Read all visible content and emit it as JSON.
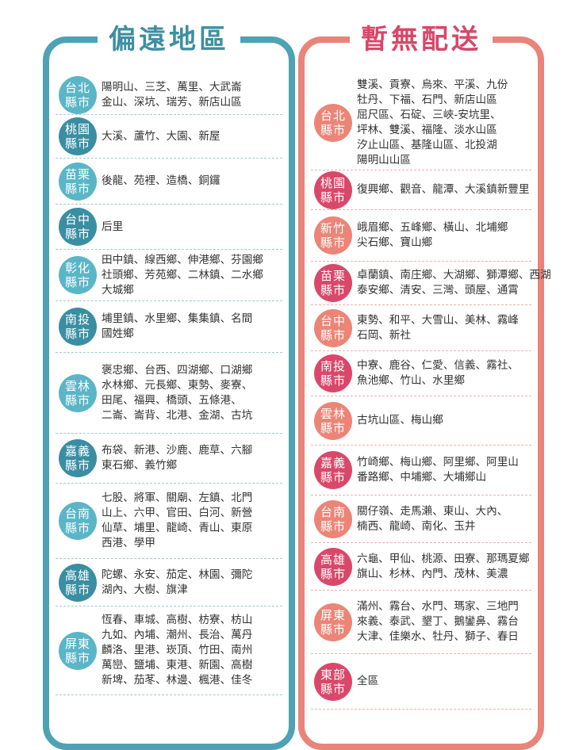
{
  "colors": {
    "teal_border": "#4ea2b4",
    "teal_light": "#5ab6c6",
    "teal_dark": "#3a8ea2",
    "salmon_border": "#e8847a",
    "salmon": "#ec8577",
    "crimson": "#d9486a"
  },
  "left": {
    "title": "偏遠地區",
    "rows": [
      {
        "region": [
          "台北",
          "縣市"
        ],
        "areas": [
          "陽明山、三芝、萬里、大武崙",
          "金山、深坑、瑞芳、新店山區"
        ]
      },
      {
        "region": [
          "桃園",
          "縣市"
        ],
        "areas": [
          "大溪、蘆竹、大園、新屋"
        ]
      },
      {
        "region": [
          "苗栗",
          "縣市"
        ],
        "areas": [
          "後龍、苑裡、造橋、銅鑼"
        ]
      },
      {
        "region": [
          "台中",
          "縣市"
        ],
        "areas": [
          "后里"
        ]
      },
      {
        "region": [
          "彰化",
          "縣市"
        ],
        "areas": [
          "田中鎮、線西鄉、伸港鄉、芬園鄉",
          "社頭鄉、芳苑鄉、二林鎮、二水鄉",
          "大城鄉"
        ]
      },
      {
        "region": [
          "南投",
          "縣市"
        ],
        "areas": [
          "埔里鎮、水里鄉、集集鎮、名間",
          "國姓鄉"
        ]
      },
      {
        "region": [
          "雲林",
          "縣市"
        ],
        "areas": [
          "褒忠鄉、台西、四湖鄉、口湖鄉",
          "水林鄉、元長鄉、東勢、麥寮、",
          "田尾、福興、橋頭、五條港、",
          "二崙、崙背、北港、金湖、古坑"
        ]
      },
      {
        "region": [
          "嘉義",
          "縣市"
        ],
        "areas": [
          "布袋、新港、沙鹿、鹿草、六腳",
          "東石鄉、義竹鄉"
        ]
      },
      {
        "region": [
          "台南",
          "縣市"
        ],
        "areas": [
          "七股、將軍、關廟、左鎮、北門",
          "山上、六甲、官田、白河、新營",
          "仙草、埔里、龍崎、青山、東原",
          "西港、學甲"
        ]
      },
      {
        "region": [
          "高雄",
          "縣市"
        ],
        "areas": [
          "陀螺、永安、茄定、林園、彌陀",
          "湖內、大樹、旗津"
        ]
      },
      {
        "region": [
          "屏東",
          "縣市"
        ],
        "areas": [
          "恆春、車城、高樹、枋寮、枋山",
          "九如、內埔、潮州、長治、萬丹",
          "麟洛、里港、崁頂、竹田、南州",
          "萬巒、鹽埔、東港、新園、高樹",
          "新埤、茄苳、林邊、楓港、佳冬"
        ]
      }
    ]
  },
  "right": {
    "title": "暫無配送",
    "rows": [
      {
        "region": [
          "台北",
          "縣市"
        ],
        "areas": [
          "雙溪、貢寮、烏來、平溪、九份",
          "牡丹、下福、石門、新店山區",
          "屈尺區、石碇、三峽-安坑里、",
          "坪林、雙溪、福隆、淡水山區",
          "汐止山區、基隆山區、北投湖",
          "陽明山山區"
        ]
      },
      {
        "region": [
          "桃園",
          "縣市"
        ],
        "areas": [
          "復興鄉、觀音、龍潭、大溪鎮新豐里"
        ]
      },
      {
        "region": [
          "新竹",
          "縣市"
        ],
        "areas": [
          "峨眉鄉、五峰鄉、橫山、北埔鄉",
          "尖石鄉、寶山鄉"
        ]
      },
      {
        "region": [
          "苗栗",
          "縣市"
        ],
        "areas": [
          "卓蘭鎮、南庄鄉、大湖鄉、獅潭鄉、西湖",
          "泰安鄉、清安、三灣、頭屋、通霄"
        ]
      },
      {
        "region": [
          "台中",
          "縣市"
        ],
        "areas": [
          "東勢、和平、大雪山、美林、霧峰",
          "石岡、新社"
        ]
      },
      {
        "region": [
          "南投",
          "縣市"
        ],
        "areas": [
          "中寮、鹿谷、仁愛、信義、霧社、",
          "魚池鄉、竹山、水里鄉"
        ]
      },
      {
        "region": [
          "雲林",
          "縣市"
        ],
        "areas": [
          "古坑山區、梅山鄉"
        ]
      },
      {
        "region": [
          "嘉義",
          "縣市"
        ],
        "areas": [
          "竹崎鄉、梅山鄉、阿里鄉、阿里山",
          "番路鄉、中埔鄉、大埔鄉山"
        ]
      },
      {
        "region": [
          "台南",
          "縣市"
        ],
        "areas": [
          "關仔嶺、走馬瀨、東山、大內、",
          "楠西、龍崎、南化、玉井"
        ]
      },
      {
        "region": [
          "高雄",
          "縣市"
        ],
        "areas": [
          "六龜、甲仙、桃源、田寮、那瑪夏鄉",
          "旗山、杉林、內門、茂林、美濃"
        ]
      },
      {
        "region": [
          "屏東",
          "縣市"
        ],
        "areas": [
          "滿州、霧台、水門、瑪家、三地門",
          "來義、泰武、墾丁、鵝鑾鼻、霧台",
          "大津、佳樂水、牡丹、獅子、春日"
        ]
      },
      {
        "region": [
          "東部",
          "縣市"
        ],
        "areas": [
          "全區"
        ]
      }
    ]
  }
}
